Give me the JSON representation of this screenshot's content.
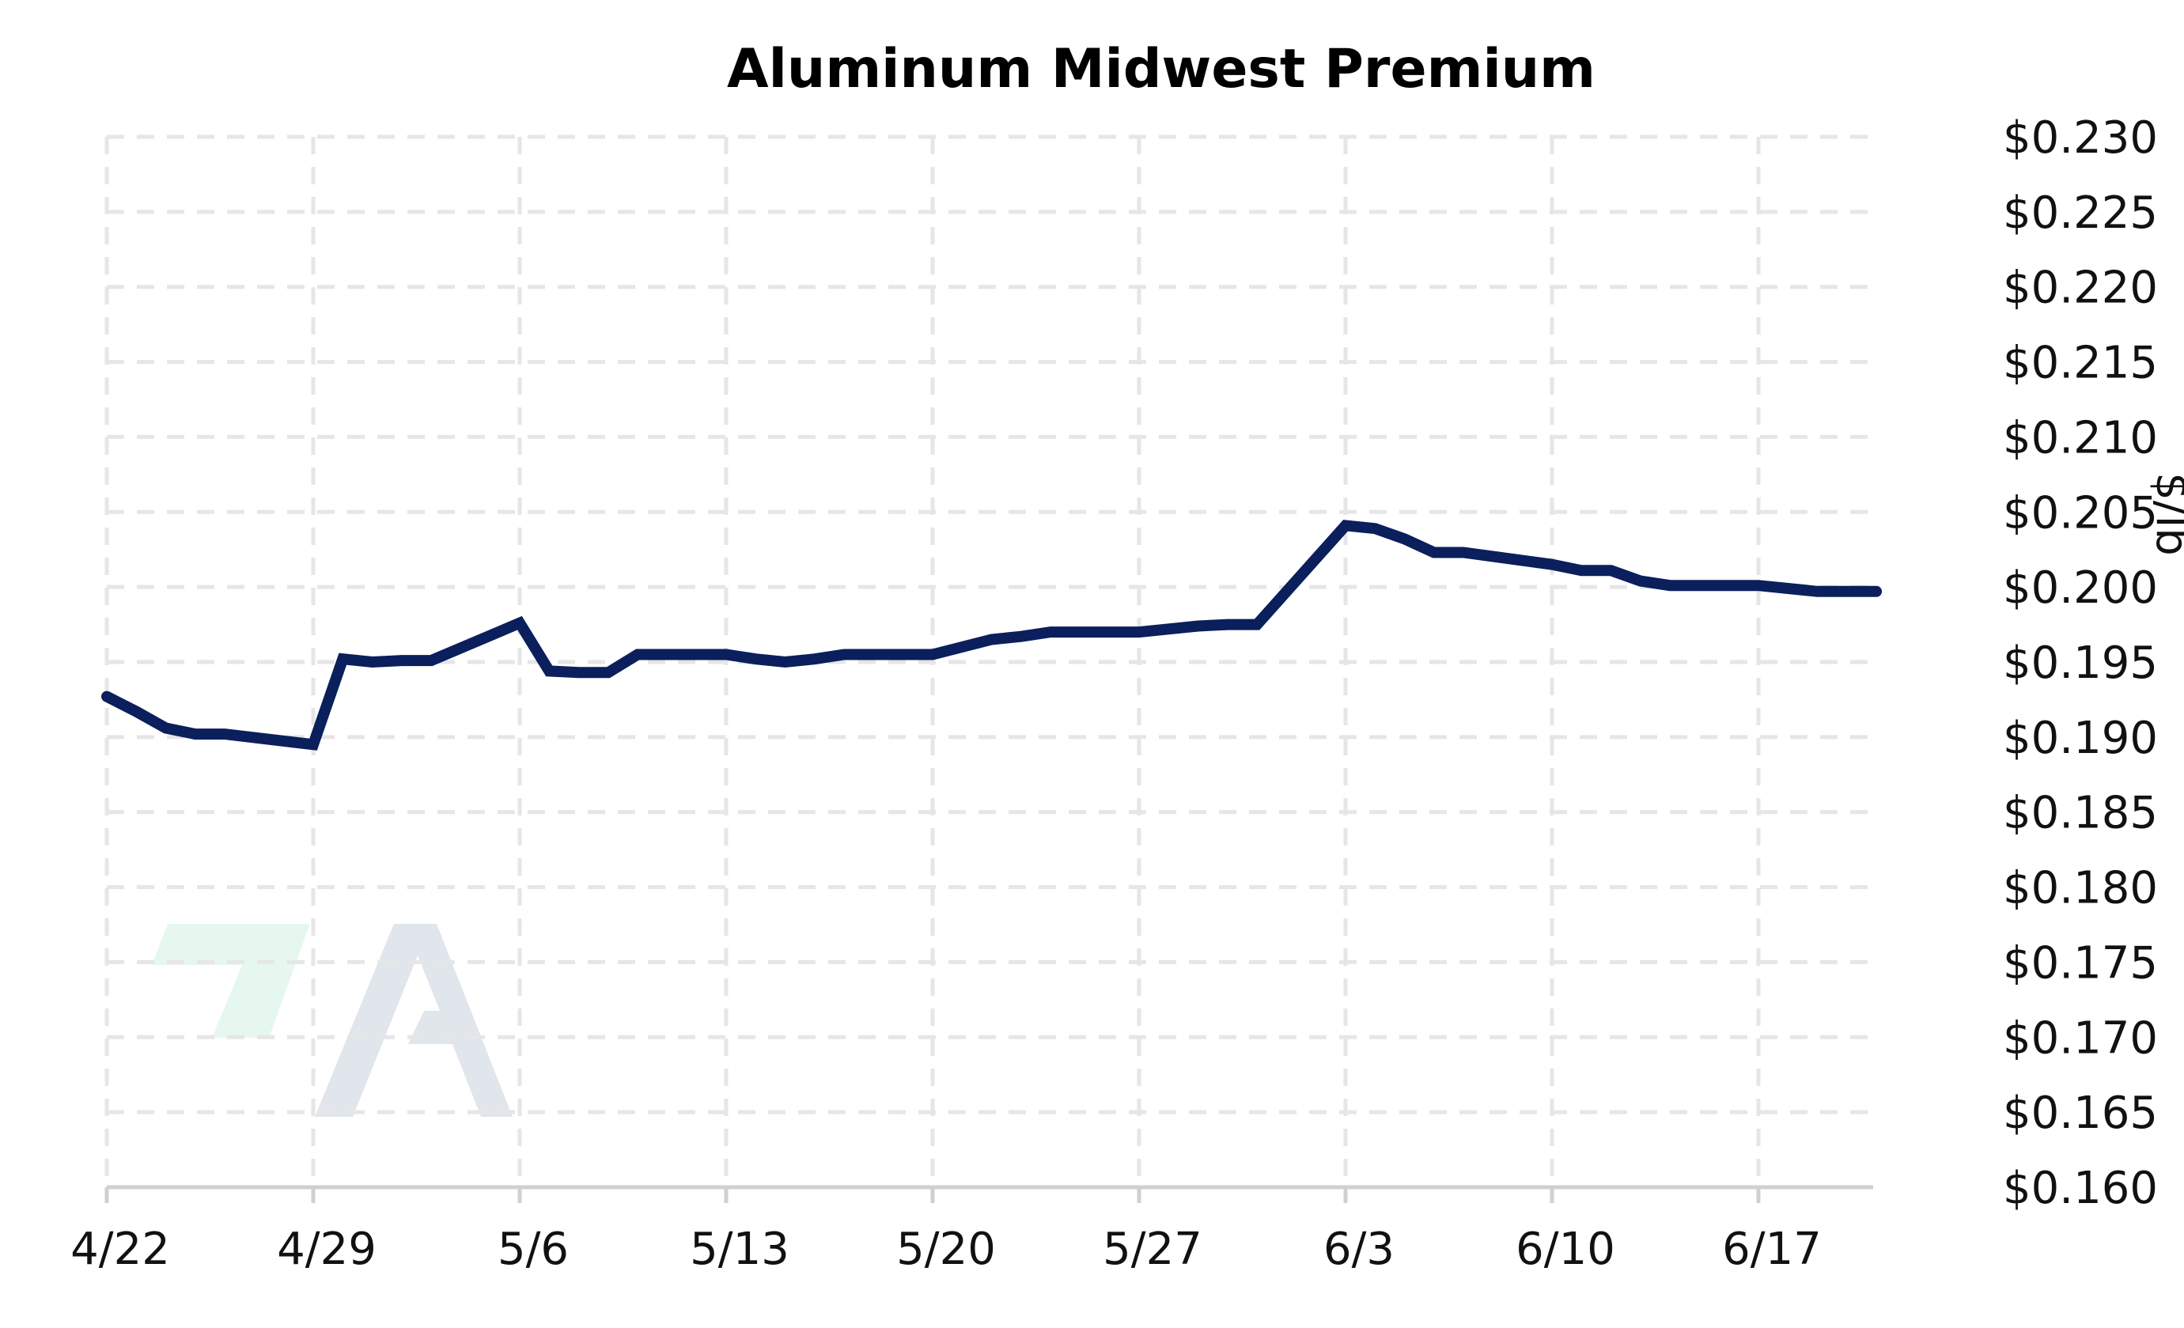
{
  "chart_data": {
    "type": "line",
    "title": "Aluminum Midwest Premium",
    "xlabel": "",
    "ylabel": "$/lb",
    "x_ticks": [
      "4/22",
      "4/29",
      "5/6",
      "5/13",
      "5/20",
      "5/27",
      "6/3",
      "6/10",
      "6/17"
    ],
    "y_ticks": [
      "$0.230",
      "$0.225",
      "$0.220",
      "$0.215",
      "$0.210",
      "$0.205",
      "$0.200",
      "$0.195",
      "$0.190",
      "$0.185",
      "$0.180",
      "$0.175",
      "$0.170",
      "$0.165",
      "$0.160"
    ],
    "ylim": [
      0.16,
      0.23
    ],
    "xlim": [
      "2024-04-22",
      "2024-06-21"
    ],
    "y_axis_position": "right",
    "grid": true,
    "line_color": "#0a1f5c",
    "series": [
      {
        "x": [
          "2024-04-22",
          "2024-04-23",
          "2024-04-24",
          "2024-04-25",
          "2024-04-26",
          "2024-04-29",
          "2024-04-30",
          "2024-05-01",
          "2024-05-02",
          "2024-05-03",
          "2024-05-06",
          "2024-05-07",
          "2024-05-08",
          "2024-05-09",
          "2024-05-10",
          "2024-05-13",
          "2024-05-14",
          "2024-05-15",
          "2024-05-16",
          "2024-05-17",
          "2024-05-20",
          "2024-05-21",
          "2024-05-22",
          "2024-05-23",
          "2024-05-24",
          "2024-05-27",
          "2024-05-28",
          "2024-05-29",
          "2024-05-30",
          "2024-05-31",
          "2024-06-03",
          "2024-06-04",
          "2024-06-05",
          "2024-06-06",
          "2024-06-07",
          "2024-06-10",
          "2024-06-11",
          "2024-06-12",
          "2024-06-13",
          "2024-06-14",
          "2024-06-17",
          "2024-06-18",
          "2024-06-19",
          "2024-06-20",
          "2024-06-21"
        ],
        "values": [
          0.1927,
          0.1917,
          0.1906,
          0.1902,
          0.1902,
          0.1895,
          0.1952,
          0.195,
          0.1951,
          0.1951,
          0.1976,
          0.1944,
          0.1943,
          0.1943,
          0.1955,
          0.1955,
          0.1952,
          0.195,
          0.1952,
          0.1955,
          0.1955,
          0.196,
          0.1965,
          0.1967,
          0.197,
          0.197,
          0.1972,
          0.1974,
          0.1975,
          0.1975,
          0.2041,
          0.2039,
          0.2032,
          0.2023,
          0.2023,
          0.2015,
          0.2011,
          0.2011,
          0.2004,
          0.2001,
          0.2001,
          0.1999,
          0.1997,
          0.1997,
          0.1997
        ]
      }
    ]
  },
  "logo": {
    "name": "logo-mark",
    "green": "#e6f7ef",
    "gray": "#e1e5ec"
  }
}
